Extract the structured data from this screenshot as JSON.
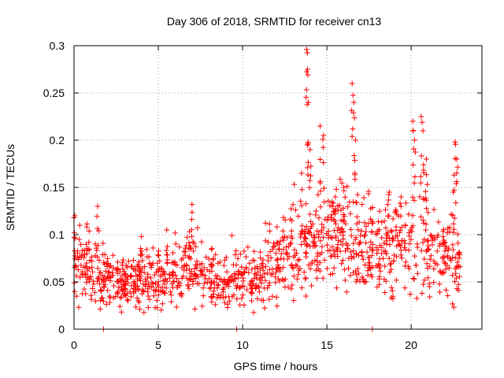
{
  "chart_data": {
    "type": "scatter",
    "title": "Day 306 of 2018, SRMTID for receiver cn13",
    "xlabel": "GPS time / hours",
    "ylabel": "SRMTID / TECUs",
    "xlim": [
      0,
      24.2
    ],
    "ylim": [
      0,
      0.3
    ],
    "x_ticks": [
      0,
      5,
      10,
      15,
      20
    ],
    "x_tick_labels": [
      "0",
      "5",
      "10",
      "15",
      "20"
    ],
    "y_ticks": [
      0,
      0.05,
      0.1,
      0.15,
      0.2,
      0.25,
      0.3
    ],
    "y_tick_labels": [
      "0",
      "0.05",
      "0.1",
      "0.15",
      "0.2",
      "0.25",
      "0.3"
    ],
    "grid": true,
    "marker": "+",
    "marker_color": "#ff0000",
    "profile": [
      [
        0.0,
        0.075
      ],
      [
        1.0,
        0.06
      ],
      [
        2.0,
        0.052
      ],
      [
        3.0,
        0.05
      ],
      [
        4.0,
        0.052
      ],
      [
        5.0,
        0.048
      ],
      [
        6.0,
        0.055
      ],
      [
        7.0,
        0.065
      ],
      [
        8.0,
        0.052
      ],
      [
        9.0,
        0.048
      ],
      [
        10.0,
        0.052
      ],
      [
        11.0,
        0.052
      ],
      [
        12.0,
        0.07
      ],
      [
        13.0,
        0.085
      ],
      [
        14.0,
        0.09
      ],
      [
        15.0,
        0.095
      ],
      [
        16.0,
        0.092
      ],
      [
        17.0,
        0.088
      ],
      [
        18.0,
        0.08
      ],
      [
        19.0,
        0.082
      ],
      [
        20.0,
        0.09
      ],
      [
        21.0,
        0.085
      ],
      [
        22.0,
        0.075
      ],
      [
        22.9,
        0.07
      ]
    ],
    "peaks": [
      [
        0.05,
        0.12
      ],
      [
        1.4,
        0.13
      ],
      [
        1.75,
        0.0
      ],
      [
        4.0,
        0.098
      ],
      [
        5.5,
        0.105
      ],
      [
        7.0,
        0.132
      ],
      [
        9.65,
        0.0
      ],
      [
        13.5,
        0.165
      ],
      [
        13.8,
        0.296
      ],
      [
        13.85,
        0.275
      ],
      [
        13.9,
        0.24
      ],
      [
        14.0,
        0.19
      ],
      [
        14.6,
        0.215
      ],
      [
        14.8,
        0.205
      ],
      [
        15.5,
        0.14
      ],
      [
        16.0,
        0.15
      ],
      [
        16.5,
        0.26
      ],
      [
        16.6,
        0.24
      ],
      [
        16.7,
        0.2
      ],
      [
        17.7,
        0.0
      ],
      [
        18.7,
        0.145
      ],
      [
        19.4,
        0.14
      ],
      [
        20.1,
        0.22
      ],
      [
        20.2,
        0.2
      ],
      [
        20.6,
        0.225
      ],
      [
        20.7,
        0.21
      ],
      [
        20.9,
        0.18
      ],
      [
        22.6,
        0.198
      ],
      [
        22.7,
        0.18
      ],
      [
        22.5,
        0.145
      ]
    ],
    "series": [
      {
        "name": "SRMTID",
        "n_points": 1200,
        "x_range": [
          0,
          22.9
        ],
        "seed": 306
      }
    ]
  }
}
